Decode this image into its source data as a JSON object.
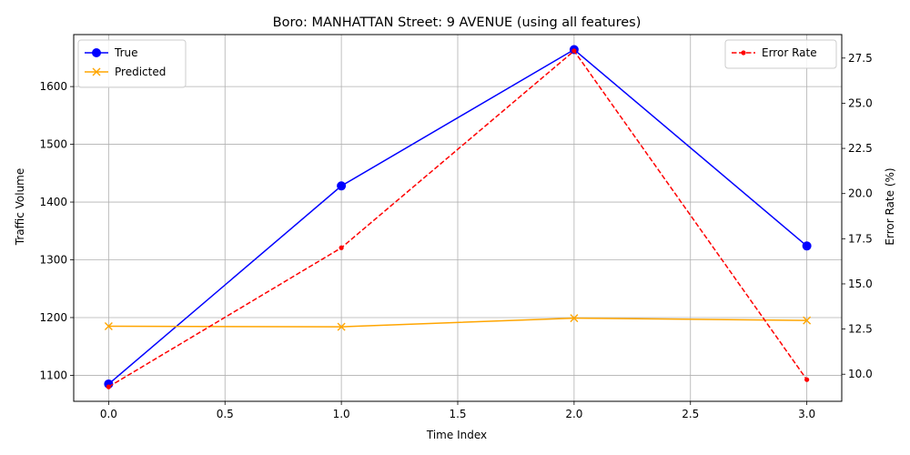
{
  "chart_data": {
    "type": "line",
    "title": "Boro: MANHATTAN Street: 9 AVENUE (using all features)",
    "xlabel": "Time Index",
    "ylabel": "Traffic Volume",
    "ylabel_right": "Error Rate (%)",
    "x": [
      0,
      1,
      2,
      3
    ],
    "xlim": [
      -0.15,
      3.15
    ],
    "ylim": [
      1055,
      1690
    ],
    "ylim_right": [
      8.5,
      28.8
    ],
    "x_ticks": [
      0.0,
      0.5,
      1.0,
      1.5,
      2.0,
      2.5,
      3.0
    ],
    "x_tick_labels": [
      "0.0",
      "0.5",
      "1.0",
      "1.5",
      "2.0",
      "2.5",
      "3.0"
    ],
    "y_ticks": [
      1100,
      1200,
      1300,
      1400,
      1500,
      1600
    ],
    "y_tick_labels": [
      "1100",
      "1200",
      "1300",
      "1400",
      "1500",
      "1600"
    ],
    "y_ticks_right": [
      10.0,
      12.5,
      15.0,
      17.5,
      20.0,
      22.5,
      25.0,
      27.5
    ],
    "y_tick_labels_right": [
      "10.0",
      "12.5",
      "15.0",
      "17.5",
      "20.0",
      "22.5",
      "25.0",
      "27.5"
    ],
    "grid": true,
    "series": [
      {
        "name": "True",
        "axis": "left",
        "values": [
          1085,
          1428,
          1664,
          1324
        ],
        "color": "#0000ff",
        "marker": "circle",
        "linestyle": "solid"
      },
      {
        "name": "Predicted",
        "axis": "left",
        "values": [
          1185,
          1184,
          1199,
          1195
        ],
        "color": "#ffa500",
        "marker": "x",
        "linestyle": "solid"
      }
    ],
    "series_right": [
      {
        "name": "Error Rate",
        "axis": "right",
        "values": [
          9.3,
          17.0,
          27.9,
          9.7
        ],
        "color": "#ff0000",
        "marker": "dot",
        "linestyle": "dashed"
      }
    ],
    "legend_left_placement": "top-left",
    "legend_right_placement": "top-right"
  }
}
